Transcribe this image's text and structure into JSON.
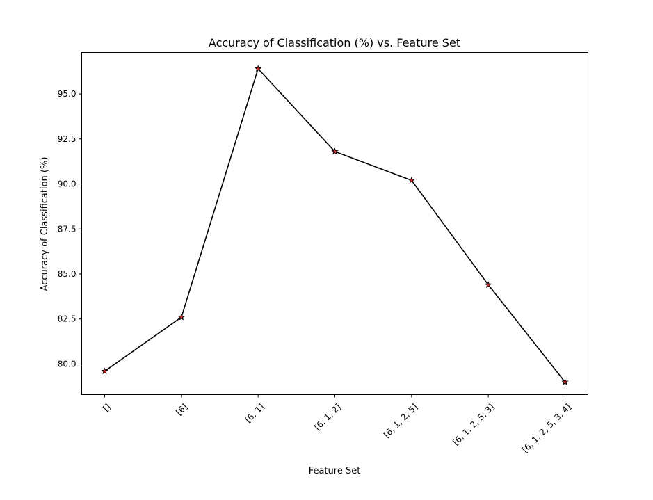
{
  "chart_data": {
    "type": "line",
    "title": "Accuracy of Classification (%) vs. Feature Set",
    "xlabel": "Feature Set",
    "ylabel": "Accuracy of Classification (%)",
    "categories": [
      "[]",
      "[6]",
      "[6, 1]",
      "[6, 1, 2]",
      "[6, 1, 2, 5]",
      "[6, 1, 2, 5, 3]",
      "[6, 1, 2, 5, 3, 4]"
    ],
    "series": [
      {
        "values": [
          79.6,
          82.6,
          96.4,
          91.8,
          90.2,
          84.4,
          79.0
        ]
      }
    ],
    "ylim": [
      78.3,
      97.3
    ],
    "yticks": [
      "80.0",
      "82.5",
      "85.0",
      "87.5",
      "90.0",
      "92.5",
      "95.0"
    ],
    "xtick_rotation_deg": 45,
    "grid": false,
    "legend": "none",
    "line_color": "#000000",
    "marker": "star",
    "marker_face_color": "#d62728",
    "marker_edge_color": "#000000"
  }
}
